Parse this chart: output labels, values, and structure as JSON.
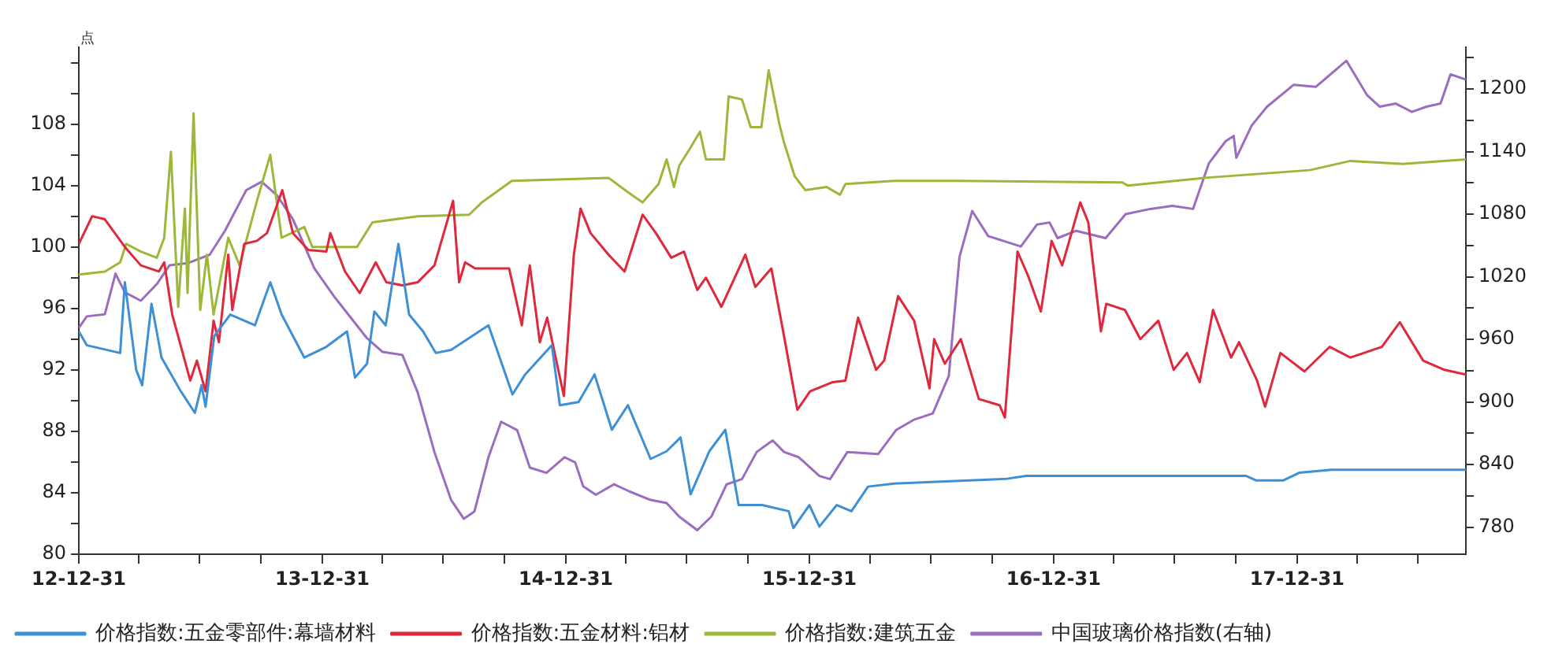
{
  "chart_data": {
    "type": "line",
    "ylabel": "点",
    "grid": false,
    "legend": "bottom",
    "xlim": [
      "2012-12-31",
      "2018-09-10"
    ],
    "xticks": [
      {
        "value": "2012-12-31",
        "label": "12-12-31"
      },
      {
        "value": "2013-03-31",
        "label": null
      },
      {
        "value": "2013-06-30",
        "label": null
      },
      {
        "value": "2013-09-30",
        "label": null
      },
      {
        "value": "2013-12-31",
        "label": "13-12-31"
      },
      {
        "value": "2014-03-31",
        "label": null
      },
      {
        "value": "2014-06-30",
        "label": null
      },
      {
        "value": "2014-09-30",
        "label": null
      },
      {
        "value": "2014-12-31",
        "label": "14-12-31"
      },
      {
        "value": "2015-03-31",
        "label": null
      },
      {
        "value": "2015-06-30",
        "label": null
      },
      {
        "value": "2015-09-30",
        "label": null
      },
      {
        "value": "2015-12-31",
        "label": "15-12-31"
      },
      {
        "value": "2016-03-31",
        "label": null
      },
      {
        "value": "2016-06-30",
        "label": null
      },
      {
        "value": "2016-09-30",
        "label": null
      },
      {
        "value": "2016-12-31",
        "label": "16-12-31"
      },
      {
        "value": "2017-03-31",
        "label": null
      },
      {
        "value": "2017-06-30",
        "label": null
      },
      {
        "value": "2017-09-30",
        "label": null
      },
      {
        "value": "2017-12-31",
        "label": "17-12-31"
      },
      {
        "value": "2018-03-31",
        "label": null
      },
      {
        "value": "2018-06-30",
        "label": null
      }
    ],
    "ylim": [
      80,
      113
    ],
    "yticks": [
      80,
      {
        "value": 82,
        "label": null
      },
      84,
      {
        "value": 86,
        "label": null
      },
      88,
      {
        "value": 90,
        "label": null
      },
      92,
      {
        "value": 94,
        "label": null
      },
      96,
      {
        "value": 98,
        "label": null
      },
      100,
      {
        "value": 102,
        "label": null
      },
      104,
      {
        "value": 106,
        "label": null
      },
      108,
      {
        "value": 110,
        "label": null
      },
      {
        "value": 112,
        "label": null
      }
    ],
    "y2lim": [
      754,
      1240
    ],
    "y2ticks": [
      780,
      {
        "value": 810,
        "label": null
      },
      840,
      {
        "value": 870,
        "label": null
      },
      900,
      {
        "value": 930,
        "label": null
      },
      960,
      {
        "value": 990,
        "label": null
      },
      1020,
      {
        "value": 1050,
        "label": null
      },
      1080,
      {
        "value": 1110,
        "label": null
      },
      1140,
      {
        "value": 1170,
        "label": null
      },
      1200,
      {
        "value": 1230,
        "label": null
      }
    ],
    "series": [
      {
        "name": "价格指数:五金零部件:幕墙材料",
        "color": "#3d8fd6",
        "x": [
          "2012-12-31",
          "2013-01-12",
          "2013-03-03",
          "2013-03-10",
          "2013-03-27",
          "2013-04-05",
          "2013-04-19",
          "2013-05-04",
          "2013-06-02",
          "2013-06-23",
          "2013-07-03",
          "2013-07-09",
          "2013-07-22",
          "2013-08-15",
          "2013-09-21",
          "2013-10-14",
          "2013-10-31",
          "2013-12-04",
          "2014-01-06",
          "2014-02-06",
          "2014-02-18",
          "2014-03-08",
          "2014-03-19",
          "2014-04-05",
          "2014-04-24",
          "2014-05-10",
          "2014-05-31",
          "2014-06-19",
          "2014-07-12",
          "2014-09-06",
          "2014-10-12",
          "2014-10-31",
          "2014-12-10",
          "2014-12-22",
          "2015-01-19",
          "2015-02-12",
          "2015-03-10",
          "2015-04-03",
          "2015-05-07",
          "2015-05-31",
          "2015-06-21",
          "2015-07-06",
          "2015-08-03",
          "2015-08-27",
          "2015-09-16",
          "2015-10-21",
          "2015-11-30",
          "2015-12-07",
          "2015-12-31",
          "2016-01-15",
          "2016-02-10",
          "2016-03-03",
          "2016-03-28",
          "2016-05-06",
          "2016-10-20",
          "2016-11-20",
          "2017-10-15",
          "2017-10-31",
          "2017-12-10",
          "2018-01-03",
          "2018-02-20",
          "2018-09-10"
        ],
        "values": [
          94.5,
          93.6,
          93.1,
          97.7,
          92.0,
          91.0,
          96.3,
          92.8,
          90.6,
          89.2,
          91.0,
          89.6,
          94.2,
          95.6,
          94.9,
          97.7,
          95.6,
          92.8,
          93.5,
          94.5,
          91.5,
          92.4,
          95.8,
          94.9,
          100.2,
          95.6,
          94.5,
          93.1,
          93.3,
          94.9,
          90.4,
          91.7,
          93.6,
          89.7,
          89.9,
          91.7,
          88.1,
          89.7,
          86.2,
          86.7,
          87.6,
          83.9,
          86.7,
          88.1,
          83.2,
          83.2,
          82.8,
          81.7,
          83.2,
          81.8,
          83.2,
          82.8,
          84.4,
          84.6,
          84.9,
          85.1,
          85.1,
          84.8,
          84.8,
          85.3,
          85.5,
          85.5
        ]
      },
      {
        "name": "价格指数:五金材料:铝材",
        "color": "#e0283c",
        "x": [
          "2012-12-31",
          "2013-01-20",
          "2013-02-08",
          "2013-03-10",
          "2013-04-03",
          "2013-04-30",
          "2013-05-08",
          "2013-05-20",
          "2013-06-16",
          "2013-06-26",
          "2013-07-09",
          "2013-07-21",
          "2013-07-29",
          "2013-08-12",
          "2013-08-18",
          "2013-09-05",
          "2013-09-24",
          "2013-10-09",
          "2013-11-01",
          "2013-11-17",
          "2013-12-10",
          "2014-01-06",
          "2014-01-12",
          "2014-02-03",
          "2014-02-25",
          "2014-03-21",
          "2014-04-06",
          "2014-04-30",
          "2014-05-23",
          "2014-06-17",
          "2014-07-15",
          "2014-07-24",
          "2014-08-02",
          "2014-08-17",
          "2014-10-07",
          "2014-10-26",
          "2014-11-07",
          "2014-11-22",
          "2014-12-03",
          "2014-12-28",
          "2015-01-12",
          "2015-01-22",
          "2015-02-06",
          "2015-03-05",
          "2015-03-29",
          "2015-04-25",
          "2015-05-15",
          "2015-06-07",
          "2015-06-26",
          "2015-07-16",
          "2015-07-29",
          "2015-08-21",
          "2015-09-26",
          "2015-10-11",
          "2015-11-04",
          "2015-11-23",
          "2015-12-13",
          "2016-01-01",
          "2016-02-04",
          "2016-02-23",
          "2016-03-13",
          "2016-04-09",
          "2016-04-21",
          "2016-05-12",
          "2016-06-05",
          "2016-06-28",
          "2016-07-05",
          "2016-07-21",
          "2016-08-14",
          "2016-09-10",
          "2016-10-11",
          "2016-10-19",
          "2016-11-07",
          "2016-11-23",
          "2016-12-12",
          "2016-12-28",
          "2017-01-13",
          "2017-02-09",
          "2017-02-21",
          "2017-03-12",
          "2017-03-20",
          "2017-04-17",
          "2017-05-10",
          "2017-06-06",
          "2017-06-29",
          "2017-07-19",
          "2017-08-07",
          "2017-08-27",
          "2017-09-23",
          "2017-10-05",
          "2017-11-01",
          "2017-11-13",
          "2017-12-06",
          "2018-01-11",
          "2018-02-18",
          "2018-03-21",
          "2018-05-07",
          "2018-06-03",
          "2018-07-08",
          "2018-08-09",
          "2018-09-10"
        ],
        "values": [
          100.2,
          102,
          101.8,
          100,
          98.8,
          98.4,
          99,
          95.6,
          91.3,
          92.6,
          90.6,
          95.2,
          93.8,
          99.5,
          95.9,
          100.2,
          100.4,
          100.9,
          103.7,
          100.9,
          99.8,
          99.7,
          100.9,
          98.4,
          97,
          99,
          97.7,
          97.5,
          97.7,
          98.8,
          103,
          97.7,
          99,
          98.6,
          98.6,
          94.9,
          98.8,
          93.8,
          95.4,
          90.3,
          99.5,
          102.5,
          100.9,
          99.5,
          98.4,
          102.1,
          100.9,
          99.3,
          99.7,
          97.2,
          98,
          96.1,
          99.5,
          97.4,
          98.6,
          94.2,
          89.4,
          90.6,
          91.2,
          91.3,
          95.4,
          92,
          92.6,
          96.8,
          95.2,
          90.8,
          94,
          92.4,
          94,
          90.1,
          89.7,
          88.9,
          99.7,
          98.1,
          95.8,
          100.4,
          98.8,
          102.9,
          101.6,
          94.5,
          96.3,
          95.9,
          94,
          95.2,
          92,
          93.1,
          91.2,
          95.9,
          92.8,
          93.8,
          91.3,
          89.6,
          93.1,
          91.9,
          93.5,
          92.8,
          93.5,
          95.1,
          92.6,
          92,
          91.7
        ]
      },
      {
        "name": "价格指数:建筑五金",
        "color": "#9bb83a",
        "x": [
          "2012-12-31",
          "2013-02-08",
          "2013-03-03",
          "2013-03-12",
          "2013-04-03",
          "2013-04-27",
          "2013-05-08",
          "2013-05-18",
          "2013-05-29",
          "2013-06-08",
          "2013-06-12",
          "2013-06-21",
          "2013-07-01",
          "2013-07-11",
          "2013-07-21",
          "2013-08-12",
          "2013-08-29",
          "2013-09-24",
          "2013-10-14",
          "2013-10-31",
          "2013-12-04",
          "2013-12-16",
          "2014-01-01",
          "2014-02-21",
          "2014-03-16",
          "2014-05-23",
          "2014-08-08",
          "2014-08-27",
          "2014-10-11",
          "2015-03-05",
          "2015-04-02",
          "2015-04-25",
          "2015-05-19",
          "2015-05-31",
          "2015-06-11",
          "2015-06-19",
          "2015-07-05",
          "2015-07-20",
          "2015-07-29",
          "2015-08-25",
          "2015-09-01",
          "2015-09-21",
          "2015-10-04",
          "2015-10-20",
          "2015-10-31",
          "2015-11-16",
          "2015-11-23",
          "2015-12-09",
          "2015-12-25",
          "2016-01-26",
          "2016-02-15",
          "2016-02-23",
          "2016-05-06",
          "2016-08-06",
          "2017-04-13",
          "2017-04-21",
          "2017-08-15",
          "2018-01-19",
          "2018-03-21",
          "2018-06-07",
          "2018-09-10"
        ],
        "values": [
          98.2,
          98.4,
          99,
          100.2,
          99.7,
          99.3,
          100.6,
          106.2,
          96.1,
          102.5,
          97,
          108.7,
          95.9,
          99.5,
          95.6,
          100.6,
          98.8,
          103,
          106,
          100.6,
          101.3,
          100,
          100,
          100,
          101.6,
          102,
          102.1,
          102.9,
          104.3,
          104.5,
          103.6,
          102.9,
          104.1,
          105.7,
          103.9,
          105.3,
          106.4,
          107.5,
          105.7,
          105.7,
          109.8,
          109.6,
          107.8,
          107.8,
          111.5,
          108,
          106.8,
          104.6,
          103.7,
          103.9,
          103.4,
          104.1,
          104.3,
          104.3,
          104.2,
          104,
          104.5,
          105,
          105.6,
          105.4,
          105.7
        ]
      },
      {
        "name": "中国玻璃价格指数(右轴)",
        "color": "#9b6dbf",
        "axis": "y2",
        "x": [
          "2012-12-31",
          "2013-01-12",
          "2013-02-08",
          "2013-02-24",
          "2013-03-10",
          "2013-04-03",
          "2013-04-27",
          "2013-05-16",
          "2013-06-12",
          "2013-07-15",
          "2013-08-07",
          "2013-09-08",
          "2013-10-01",
          "2013-10-24",
          "2013-11-17",
          "2013-12-19",
          "2014-01-19",
          "2014-03-08",
          "2014-03-31",
          "2014-04-30",
          "2014-05-23",
          "2014-06-17",
          "2014-07-12",
          "2014-07-31",
          "2014-08-16",
          "2014-09-06",
          "2014-09-25",
          "2014-10-19",
          "2014-11-07",
          "2014-12-02",
          "2014-12-29",
          "2015-01-14",
          "2015-01-26",
          "2015-02-14",
          "2015-03-13",
          "2015-04-06",
          "2015-05-07",
          "2015-05-31",
          "2015-06-19",
          "2015-07-16",
          "2015-08-06",
          "2015-08-29",
          "2015-09-21",
          "2015-10-13",
          "2015-11-06",
          "2015-11-23",
          "2015-12-15",
          "2016-01-15",
          "2016-01-31",
          "2016-02-26",
          "2016-04-12",
          "2016-05-09",
          "2016-06-05",
          "2016-07-03",
          "2016-07-27",
          "2016-08-12",
          "2016-08-31",
          "2016-09-24",
          "2016-11-12",
          "2016-12-06",
          "2016-12-25",
          "2017-01-06",
          "2017-02-03",
          "2017-03-19",
          "2017-04-18",
          "2017-05-25",
          "2017-06-27",
          "2017-07-28",
          "2017-08-21",
          "2017-09-15",
          "2017-09-27",
          "2017-10-01",
          "2017-10-24",
          "2017-11-16",
          "2017-12-26",
          "2018-01-28",
          "2018-03-15",
          "2018-04-15",
          "2018-05-04",
          "2018-05-28",
          "2018-06-21",
          "2018-07-13",
          "2018-08-03",
          "2018-08-18",
          "2018-09-10"
        ],
        "values": [
          971,
          982,
          984,
          1023,
          1005,
          997,
          1013,
          1031,
          1033,
          1041,
          1064,
          1103,
          1111,
          1098,
          1075,
          1028,
          1000,
          961,
          948,
          945,
          909,
          852,
          806,
          788,
          795,
          847,
          881,
          873,
          837,
          832,
          847,
          842,
          819,
          811,
          821,
          814,
          806,
          803,
          790,
          777,
          790,
          821,
          826,
          852,
          863,
          852,
          847,
          829,
          826,
          852,
          850,
          873,
          883,
          889,
          925,
          1039,
          1083,
          1059,
          1049,
          1070,
          1072,
          1057,
          1064,
          1057,
          1080,
          1085,
          1088,
          1085,
          1129,
          1150,
          1155,
          1134,
          1165,
          1183,
          1204,
          1202,
          1227,
          1194,
          1183,
          1186,
          1178,
          1183,
          1186,
          1214,
          1209
        ]
      }
    ]
  }
}
